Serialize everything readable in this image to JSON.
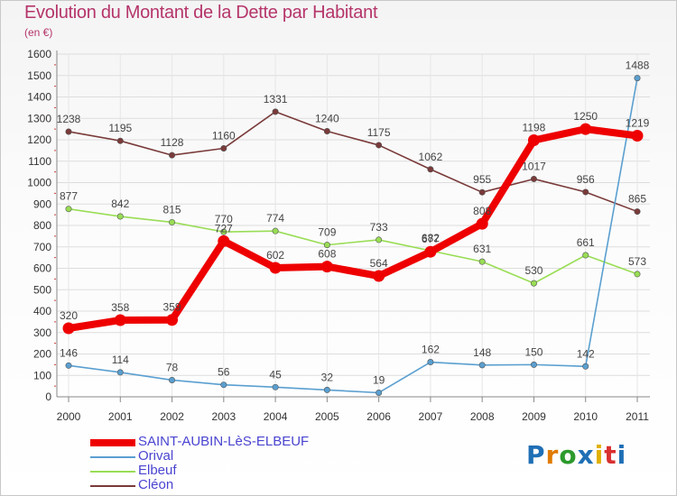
{
  "title": "Evolution du Montant de la Dette par Habitant",
  "subtitle": "(en €)",
  "chart_data": {
    "type": "line",
    "title": "Evolution du Montant de la Dette par Habitant",
    "subtitle": "(en €)",
    "xlabel": "",
    "ylabel": "",
    "x": [
      "2000",
      "2001",
      "2002",
      "2003",
      "2004",
      "2005",
      "2006",
      "2007",
      "2008",
      "2009",
      "2010",
      "2011"
    ],
    "ylim": [
      0,
      1600
    ],
    "yticks": [
      0,
      100,
      200,
      300,
      400,
      500,
      600,
      700,
      800,
      900,
      1000,
      1100,
      1200,
      1300,
      1400,
      1500,
      1600
    ],
    "grid": true,
    "legend_position": "bottom-left",
    "series": [
      {
        "name": "SAINT-AUBIN-LèS-ELBEUF",
        "color": "#ee0000",
        "values": [
          320,
          358,
          359,
          727,
          602,
          608,
          564,
          677,
          808,
          1198,
          1250,
          1219
        ],
        "labels": [
          "320",
          "358",
          "359",
          "727",
          "602",
          "608",
          "564",
          "677",
          "808",
          "1198",
          "1250",
          "1219"
        ]
      },
      {
        "name": "Orival",
        "color": "#5a9fd0",
        "values": [
          146,
          114,
          78,
          56,
          45,
          32,
          19,
          162,
          148,
          150,
          142,
          1488
        ],
        "labels": [
          "146",
          "114",
          "78",
          "56",
          "45",
          "32",
          "19",
          "162",
          "148",
          "150",
          "142",
          "1488"
        ]
      },
      {
        "name": "Elbeuf",
        "color": "#99dd55",
        "values": [
          877,
          842,
          815,
          770,
          774,
          709,
          733,
          682,
          631,
          530,
          661,
          573
        ],
        "labels": [
          "877",
          "842",
          "815",
          "770",
          "774",
          "709",
          "733",
          "682",
          "631",
          "530",
          "661",
          "573"
        ]
      },
      {
        "name": "Cléon",
        "color": "#7a3a3a",
        "values": [
          1238,
          1195,
          1128,
          1160,
          1331,
          1240,
          1175,
          1062,
          955,
          1017,
          956,
          865
        ],
        "labels": [
          "1238",
          "1195",
          "1128",
          "1160",
          "1331",
          "1240",
          "1175",
          "1062",
          "955",
          "1017",
          "956",
          "865"
        ]
      }
    ]
  },
  "legend": {
    "items": [
      {
        "label": "SAINT-AUBIN-LèS-ELBEUF",
        "color": "#ee0000"
      },
      {
        "label": "Orival",
        "color": "#5a9fd0"
      },
      {
        "label": "Elbeuf",
        "color": "#99dd55"
      },
      {
        "label": "Cléon",
        "color": "#7a3a3a"
      }
    ]
  },
  "logo": {
    "text": "Proxiti",
    "colors": [
      "#1f6fb5",
      "#e07b00",
      "#2c9a2c",
      "#1f6fb5",
      "#e0b000",
      "#d93030",
      "#1f6fb5"
    ]
  }
}
